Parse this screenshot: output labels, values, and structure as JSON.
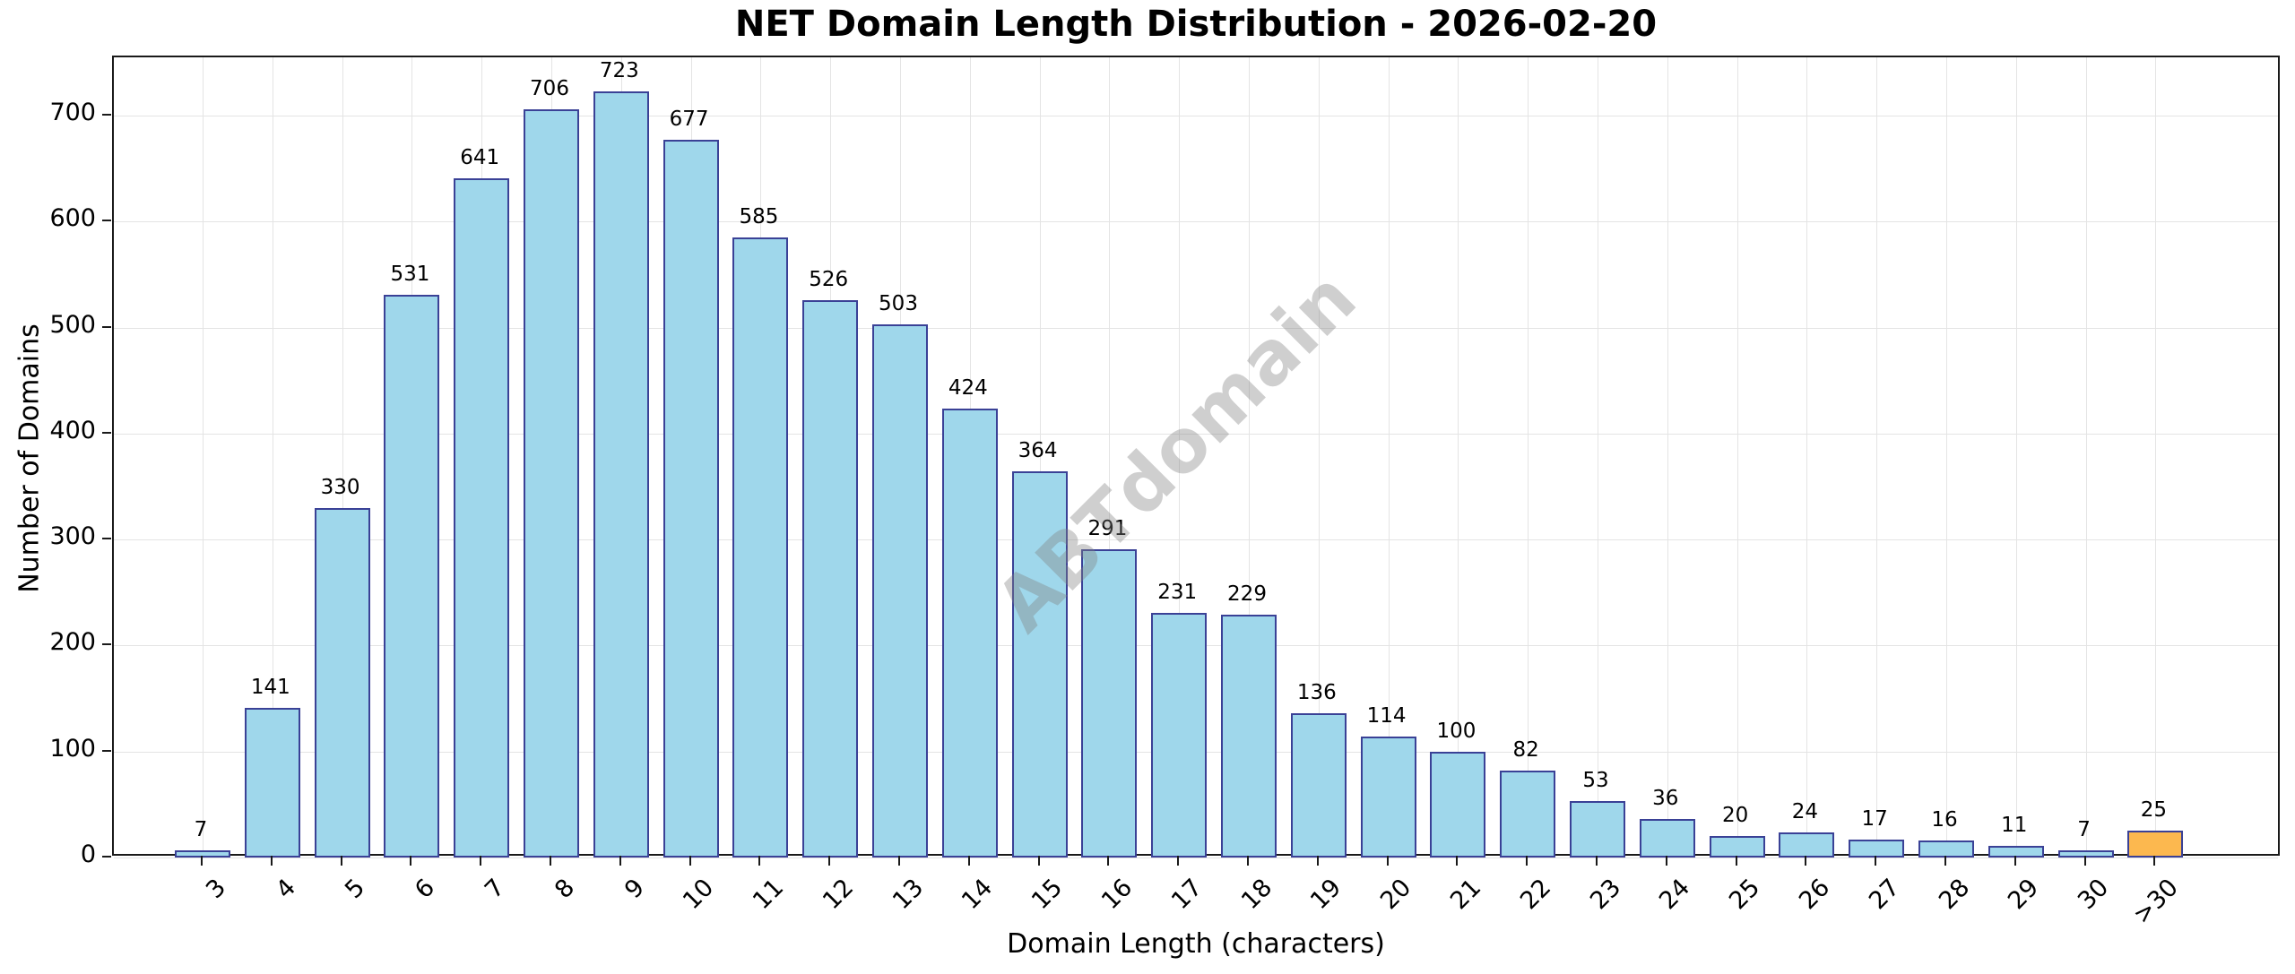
{
  "chart_data": {
    "type": "bar",
    "title": "NET Domain Length Distribution - 2026-02-20",
    "xlabel": "Domain Length (characters)",
    "ylabel": "Number of Domains",
    "categories": [
      "3",
      "4",
      "5",
      "6",
      "7",
      "8",
      "9",
      "10",
      "11",
      "12",
      "13",
      "14",
      "15",
      "16",
      "17",
      "18",
      "19",
      "20",
      "21",
      "22",
      "23",
      "24",
      "25",
      "26",
      "27",
      "28",
      "29",
      "30",
      ">30"
    ],
    "values": [
      7,
      141,
      330,
      531,
      641,
      706,
      723,
      677,
      585,
      526,
      503,
      424,
      364,
      291,
      231,
      229,
      136,
      114,
      100,
      82,
      53,
      36,
      20,
      24,
      17,
      16,
      11,
      7,
      25
    ],
    "ylim": [
      0,
      755
    ],
    "yticks": [
      0,
      100,
      200,
      300,
      400,
      500,
      600,
      700
    ],
    "grid": true,
    "legend": "none",
    "value_labels": true,
    "bar_color": "#9fd7eb",
    "bar_edge_color": "#3a4196",
    "highlight_category": ">30",
    "highlight_bar_color": "#fcb84f",
    "watermark": "ABTdomain"
  }
}
